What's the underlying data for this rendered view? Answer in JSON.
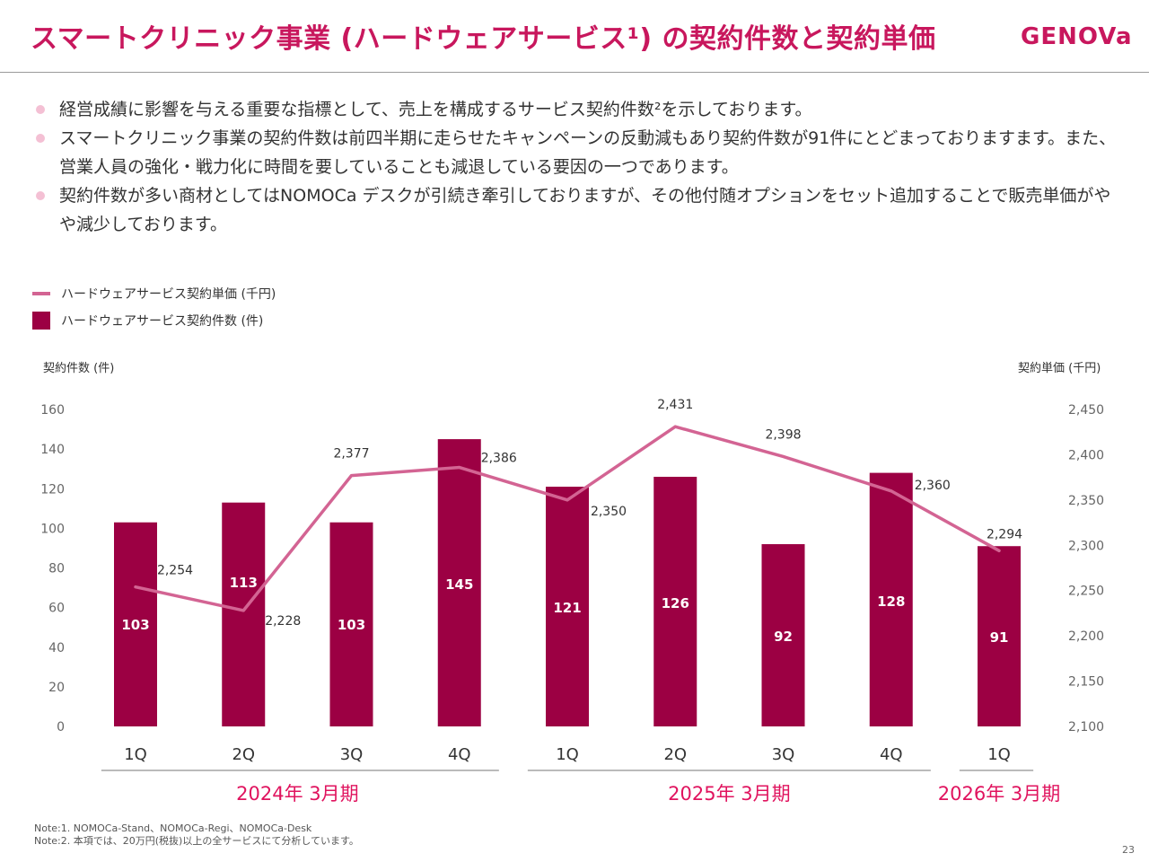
{
  "header": {
    "title": "スマートクリニック事業 (ハードウェアサービス¹) の契約件数と契約単価",
    "logo": "GENOVa"
  },
  "bullets": [
    "経営成績に影響を与える重要な指標として、売上を構成するサービス契約件数²を示しております。",
    "スマートクリニック事業の契約件数は前四半期に走らせたキャンペーンの反動減もあり契約件数が91件にとどまっておりますます。また、営業人員の強化・戦力化に時間を要していることも減退している要因の一つであります。",
    "契約件数が多い商材としてはNOMOCa デスクが引続き牽引しておりますが、その他付随オプションをセット追加することで販売単価がやや減少しております。"
  ],
  "legend": {
    "line_label": "ハードウェアサービス契約単価 (千円)",
    "bar_label": "ハードウェアサービス契約件数 (件)"
  },
  "chart_data": {
    "type": "bar",
    "categories": [
      "1Q",
      "2Q",
      "3Q",
      "4Q",
      "1Q",
      "2Q",
      "3Q",
      "4Q",
      "1Q"
    ],
    "fiscal_years": [
      {
        "label": "2024年 3月期",
        "quarters": 4
      },
      {
        "label": "2025年 3月期",
        "quarters": 4
      },
      {
        "label": "2026年 3月期",
        "quarters": 1
      }
    ],
    "series": [
      {
        "name": "ハードウェアサービス契約件数 (件)",
        "type": "bar",
        "axis": "left",
        "color": "#9c0043",
        "values": [
          103,
          113,
          103,
          145,
          121,
          126,
          92,
          128,
          91
        ],
        "labels": [
          "103",
          "113",
          "103",
          "145",
          "121",
          "126",
          "92",
          "128",
          "91"
        ]
      },
      {
        "name": "ハードウェアサービス契約単価 (千円)",
        "type": "line",
        "axis": "right",
        "color": "#d36493",
        "values": [
          2254,
          2228,
          2377,
          2386,
          2350,
          2431,
          2398,
          2360,
          2294
        ],
        "labels": [
          "2,254",
          "2,228",
          "2,377",
          "2,386",
          "2,350",
          "2,431",
          "2,398",
          "2,360",
          "2,294"
        ]
      }
    ],
    "y_left": {
      "title": "契約件数 (件)",
      "range": [
        0,
        160
      ],
      "ticks": [
        "0",
        "20",
        "40",
        "60",
        "80",
        "100",
        "120",
        "140",
        "160"
      ]
    },
    "y_right": {
      "title": "契約単価 (千円)",
      "range": [
        2100,
        2450
      ],
      "ticks": [
        "2,100",
        "2,150",
        "2,200",
        "2,250",
        "2,300",
        "2,350",
        "2,400",
        "2,450"
      ]
    },
    "grid": false,
    "legend_position": "top-left"
  },
  "footnotes": [
    "Note:1. NOMOCa-Stand、NOMOCa-Regi、NOMOCa-Desk",
    "Note:2. 本項では、20万円(税抜)以上の全サービスにて分析しています。"
  ],
  "page_number": "23"
}
